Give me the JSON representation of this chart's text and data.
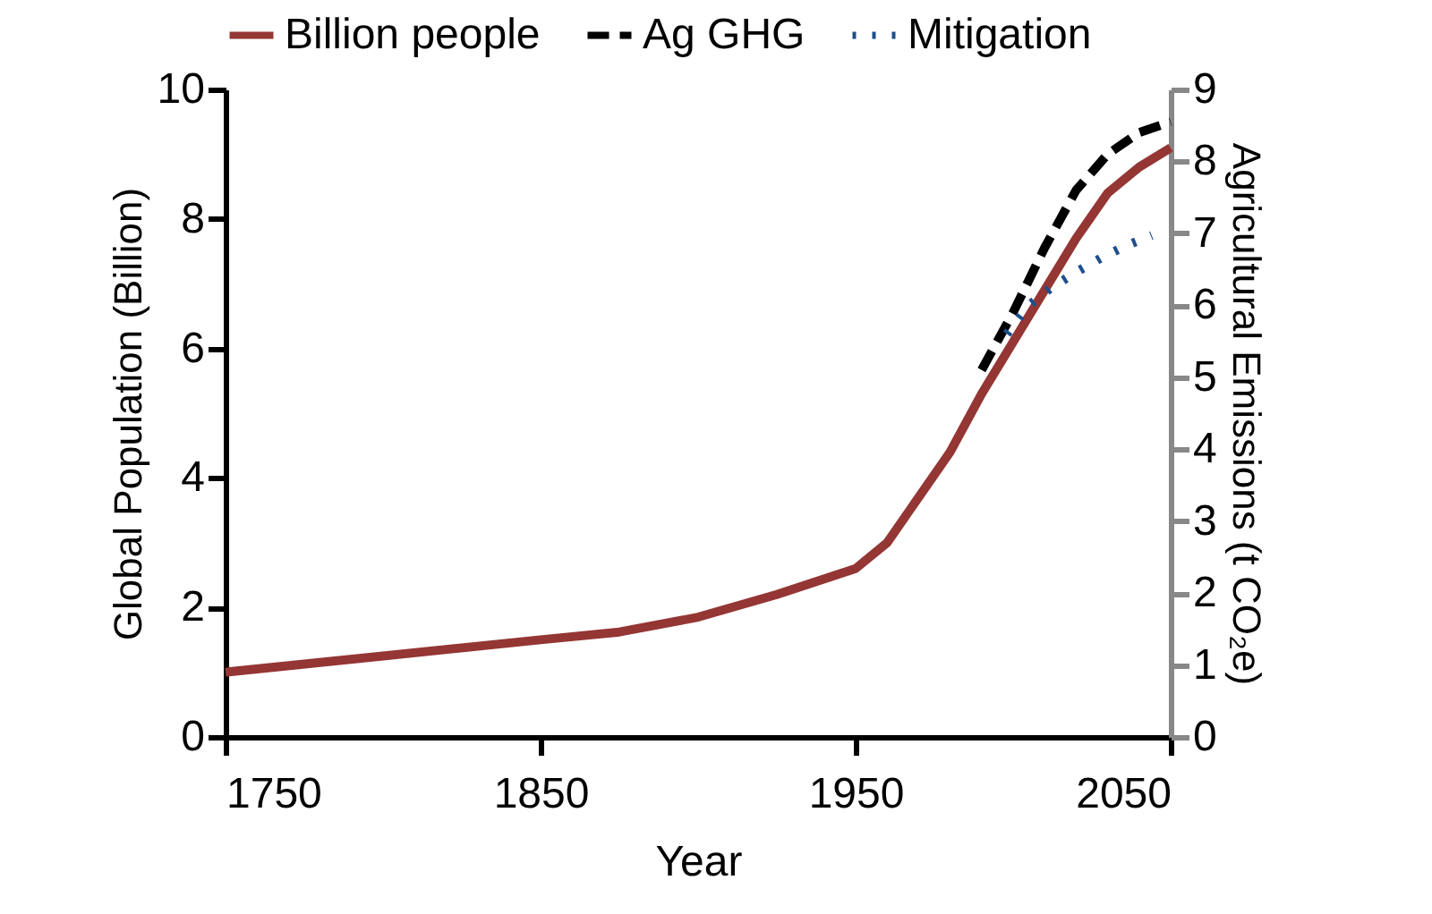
{
  "chart_data": {
    "type": "line",
    "xlabel": "Year",
    "ylabel": "Global Population (Billion)",
    "y2label": "Agricultural Emissions (t CO₂e)",
    "xlim": [
      1750,
      2050
    ],
    "xticks": [
      1750,
      1850,
      1950,
      2050
    ],
    "ylim": [
      0,
      10
    ],
    "yticks": [
      0,
      2,
      4,
      6,
      8,
      10
    ],
    "y2lim": [
      0,
      9
    ],
    "y2ticks": [
      0,
      1,
      2,
      3,
      4,
      5,
      6,
      7,
      8,
      9
    ],
    "grid": false,
    "legend": "top",
    "marker": "none",
    "series": [
      {
        "name": "Billion people",
        "color": "#943634",
        "line_style": "solid",
        "x": [
          1750,
          1800,
          1850,
          1875,
          1900,
          1925,
          1950,
          1960,
          1970,
          1980,
          1990,
          2000,
          2010,
          2020,
          2030,
          2040,
          2050
        ],
        "values": [
          1.0,
          1.25,
          1.5,
          1.62,
          1.85,
          2.2,
          2.6,
          3.0,
          3.7,
          4.4,
          5.3,
          6.1,
          6.9,
          7.7,
          8.4,
          8.8,
          9.1
        ]
      },
      {
        "name": "Ag GHG",
        "color": "#000000",
        "line_style": "dashed",
        "axis": "y2",
        "x": [
          1990,
          2000,
          2010,
          2020,
          2030,
          2040,
          2050
        ],
        "values": [
          5.1,
          5.9,
          6.8,
          7.6,
          8.1,
          8.4,
          8.55
        ]
      },
      {
        "name": "Mitigation",
        "color": "#1f4e8c",
        "line_style": "dotted",
        "axis": "y2",
        "x": [
          1998,
          2005,
          2012,
          2020,
          2028,
          2036,
          2044
        ],
        "values": [
          5.6,
          6.0,
          6.24,
          6.46,
          6.66,
          6.83,
          6.97
        ]
      }
    ]
  }
}
